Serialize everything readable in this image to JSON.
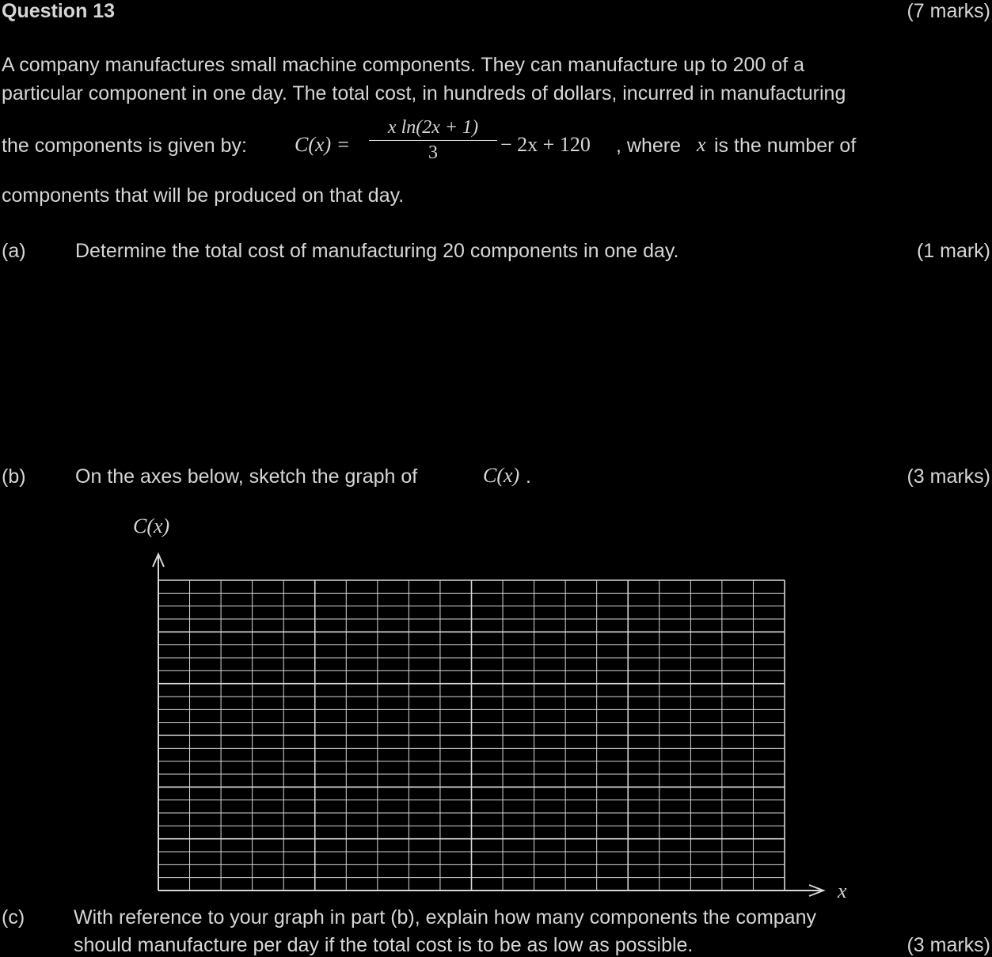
{
  "header": {
    "question": "Question 13",
    "marks": "(7 marks)"
  },
  "intro": {
    "line1": "A company manufactures small machine components. They can manufacture up to 200 of a",
    "line2": "particular component in one day. The total cost, in hundreds of dollars, incurred in manufacturing",
    "line3_pre": "the components is given by:",
    "func": "C(x) =",
    "frac_num": "x ln(2x + 1)",
    "frac_den": "3",
    "after_frac": "− 2x + 120",
    "line3_post": ", where",
    "var": "x",
    "line3_end": "is the number of",
    "line4": "components that will be produced on that day."
  },
  "part_a": {
    "label": "(a)",
    "text": "Determine the total cost of manufacturing 20 components in one day.",
    "marks": "(1 mark)"
  },
  "part_b": {
    "label": "(b)",
    "text": "On the axes below, sketch the graph of",
    "func": "C(x)",
    "period": ".",
    "marks": "(3 marks)"
  },
  "graph": {
    "y_axis_label": "C(x)",
    "x_axis_label": "x",
    "minor_cols": 20,
    "minor_rows": 24,
    "major_col_every": 5,
    "major_row_every": 4
  },
  "part_c": {
    "label": "(c)",
    "line1": "With reference to your graph in part (b), explain how many components the company",
    "line2": "should manufacture per day if the total cost is to be as low as possible.",
    "marks": "(3 marks)"
  }
}
